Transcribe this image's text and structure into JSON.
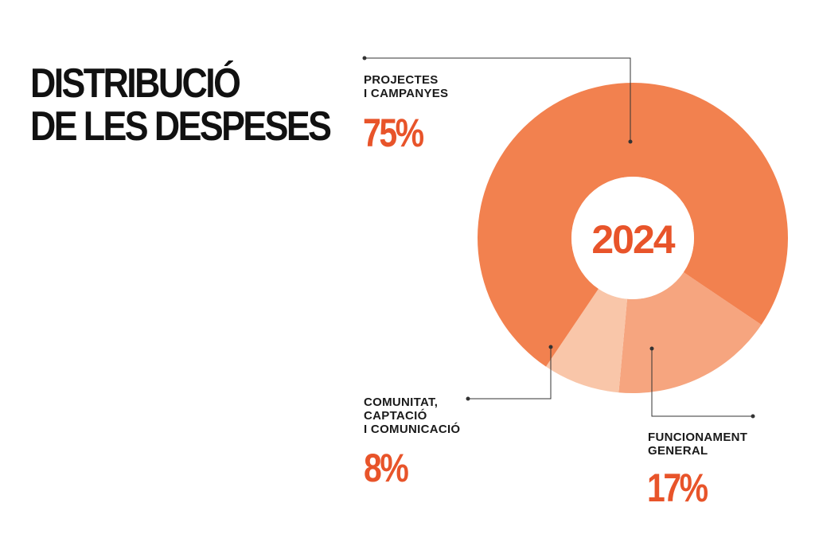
{
  "title_lines": [
    "DISTRIBUCIÓ",
    "DE LES DESPESES"
  ],
  "chart_data": {
    "type": "pie",
    "center_label": "2024",
    "slices": [
      {
        "label_lines": [
          "PROJECTES",
          "I CAMPANYES"
        ],
        "value": 75,
        "value_label": "75%",
        "color": "#f2814f"
      },
      {
        "label_lines": [
          "FUNCIONAMENT",
          "GENERAL"
        ],
        "value": 17,
        "value_label": "17%",
        "color": "#f6a57f"
      },
      {
        "label_lines": [
          "COMUNITAT,",
          "CAPTACIÓ",
          "I COMUNICACIÓ"
        ],
        "value": 8,
        "value_label": "8%",
        "color": "#f9c6a9"
      }
    ]
  },
  "colors": {
    "accent": "#e8542a",
    "text": "#1a1a1a",
    "leader_line": "#333333"
  }
}
